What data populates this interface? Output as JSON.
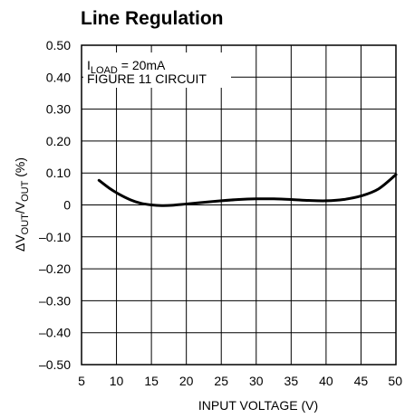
{
  "chart_data": {
    "type": "line",
    "title": "Line Regulation",
    "xlabel": "INPUT VOLTAGE (V)",
    "ylabel": {
      "delta": "Δ",
      "v1": "V",
      "sub1": "OUT",
      "slash": "/V",
      "sub2": "OUT",
      "unit": " (%)"
    },
    "xlim": [
      5,
      50
    ],
    "ylim": [
      -0.5,
      0.5
    ],
    "xticks": [
      5,
      10,
      15,
      20,
      25,
      30,
      35,
      40,
      45,
      50
    ],
    "yticks": [
      0.5,
      0.4,
      0.3,
      0.2,
      0.1,
      0,
      -0.1,
      -0.2,
      -0.3,
      -0.4,
      -0.5
    ],
    "ytick_labels": [
      "0.50",
      "0.40",
      "0.30",
      "0.20",
      "0.10",
      "0",
      "–0.10",
      "–0.20",
      "–0.30",
      "–0.40",
      "–0.50"
    ],
    "grid": true,
    "annotation": {
      "line1_prefix": "I",
      "line1_sub": "LOAD",
      "line1_suffix": " = 20mA",
      "line2": "FIGURE 11 CIRCUIT"
    },
    "series": [
      {
        "x": [
          7.5,
          9,
          10.5,
          12,
          13.5,
          15,
          16.5,
          18,
          20,
          22.5,
          25,
          27.5,
          30,
          32.5,
          35,
          37.5,
          40,
          42.5,
          45,
          47.5,
          50
        ],
        "values": [
          0.077,
          0.052,
          0.032,
          0.016,
          0.005,
          0.0,
          -0.002,
          -0.001,
          0.003,
          0.008,
          0.013,
          0.017,
          0.019,
          0.019,
          0.017,
          0.014,
          0.013,
          0.017,
          0.028,
          0.05,
          0.095
        ]
      }
    ]
  }
}
